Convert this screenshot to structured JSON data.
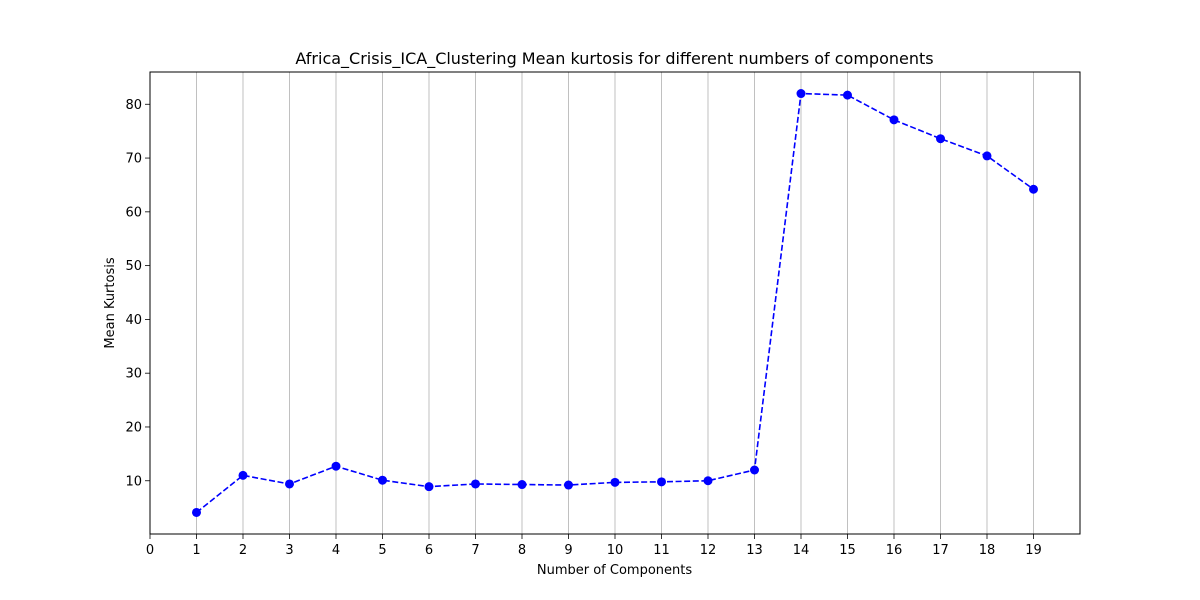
{
  "chart_data": {
    "type": "line",
    "title": "Africa_Crisis_ICA_Clustering Mean kurtosis for different numbers of components",
    "xlabel": "Number of Components",
    "ylabel": "Mean Kurtosis",
    "x": [
      1,
      2,
      3,
      4,
      5,
      6,
      7,
      8,
      9,
      10,
      11,
      12,
      13,
      14,
      15,
      16,
      17,
      18,
      19
    ],
    "series": [
      {
        "values": [
          4.1,
          11.0,
          9.4,
          12.7,
          10.1,
          8.9,
          9.4,
          9.3,
          9.2,
          9.7,
          9.8,
          10.0,
          12.0,
          82.0,
          81.7,
          77.1,
          73.6,
          70.4,
          64.2
        ]
      }
    ],
    "xticks": [
      0,
      1,
      2,
      3,
      4,
      5,
      6,
      7,
      8,
      9,
      10,
      11,
      12,
      13,
      14,
      15,
      16,
      17,
      18,
      19
    ],
    "yticks": [
      10,
      20,
      30,
      40,
      50,
      60,
      70,
      80
    ],
    "xlim": [
      0,
      20
    ],
    "ylim": [
      0.1,
      86.0
    ],
    "grid": "vertical",
    "line_style": "dashed",
    "marker": "circle",
    "color": "#0000ff"
  }
}
